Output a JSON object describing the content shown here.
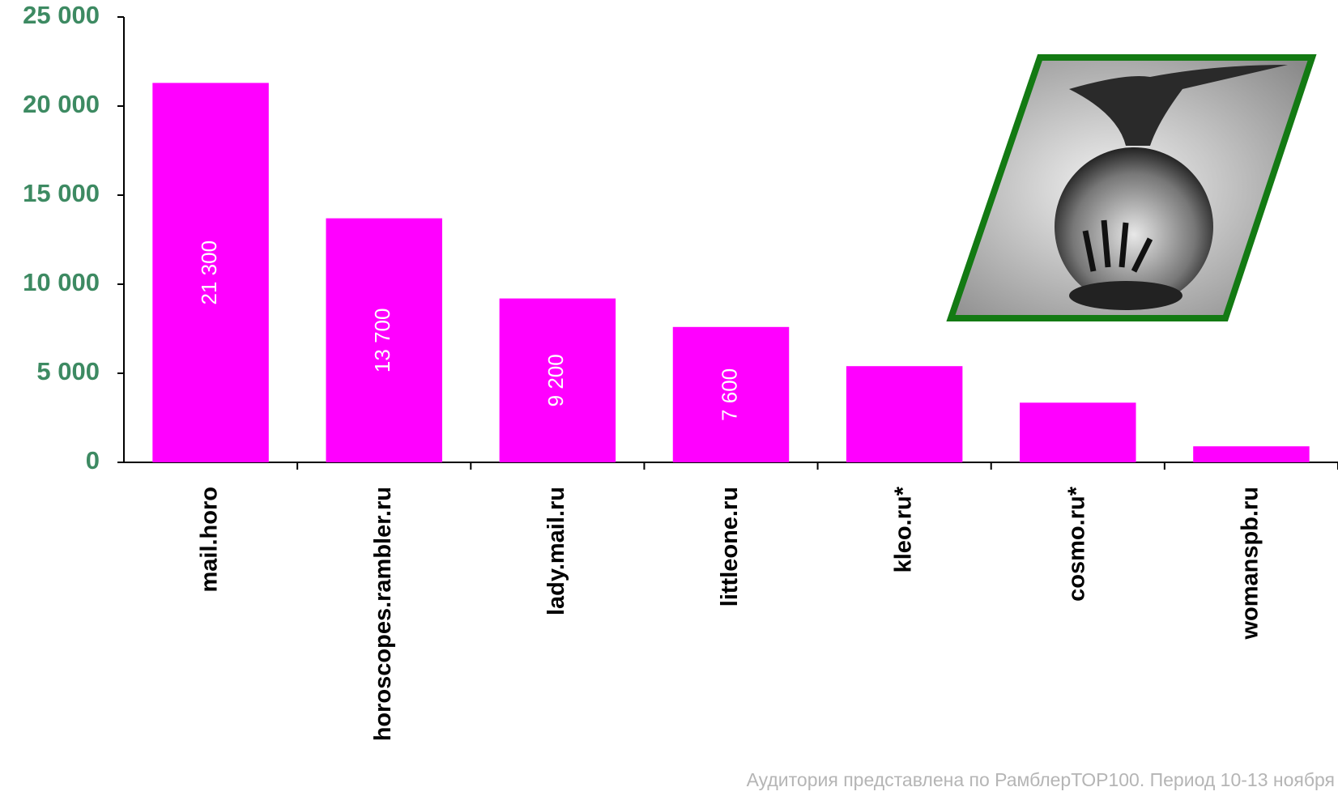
{
  "chart_data": {
    "type": "bar",
    "categories": [
      "mail.horo",
      "horoscopes.rambler.ru",
      "lady.mail.ru",
      "littleone.ru",
      "kleo.ru*",
      "cosmo.ru*",
      "womanspb.ru"
    ],
    "values": [
      21300,
      13700,
      9200,
      7600,
      5400,
      3350,
      900
    ],
    "value_labels": [
      "21 300",
      "13 700",
      "9 200",
      "7 600",
      null,
      null,
      null
    ],
    "color": "#ff00ff",
    "ylim": [
      0,
      25000
    ],
    "yticks": [
      0,
      {
        "value": 5000,
        "label": "5 000"
      },
      {
        "value": 10000,
        "label": "10 000"
      },
      {
        "value": 15000,
        "label": "15 000"
      },
      {
        "value": 20000,
        "label": "20 000"
      },
      {
        "value": 25000,
        "label": "25 000"
      }
    ],
    "grid": false,
    "annotation": "Аудитория представлена по РамблерТОР100. Период 10-13 ноября"
  }
}
